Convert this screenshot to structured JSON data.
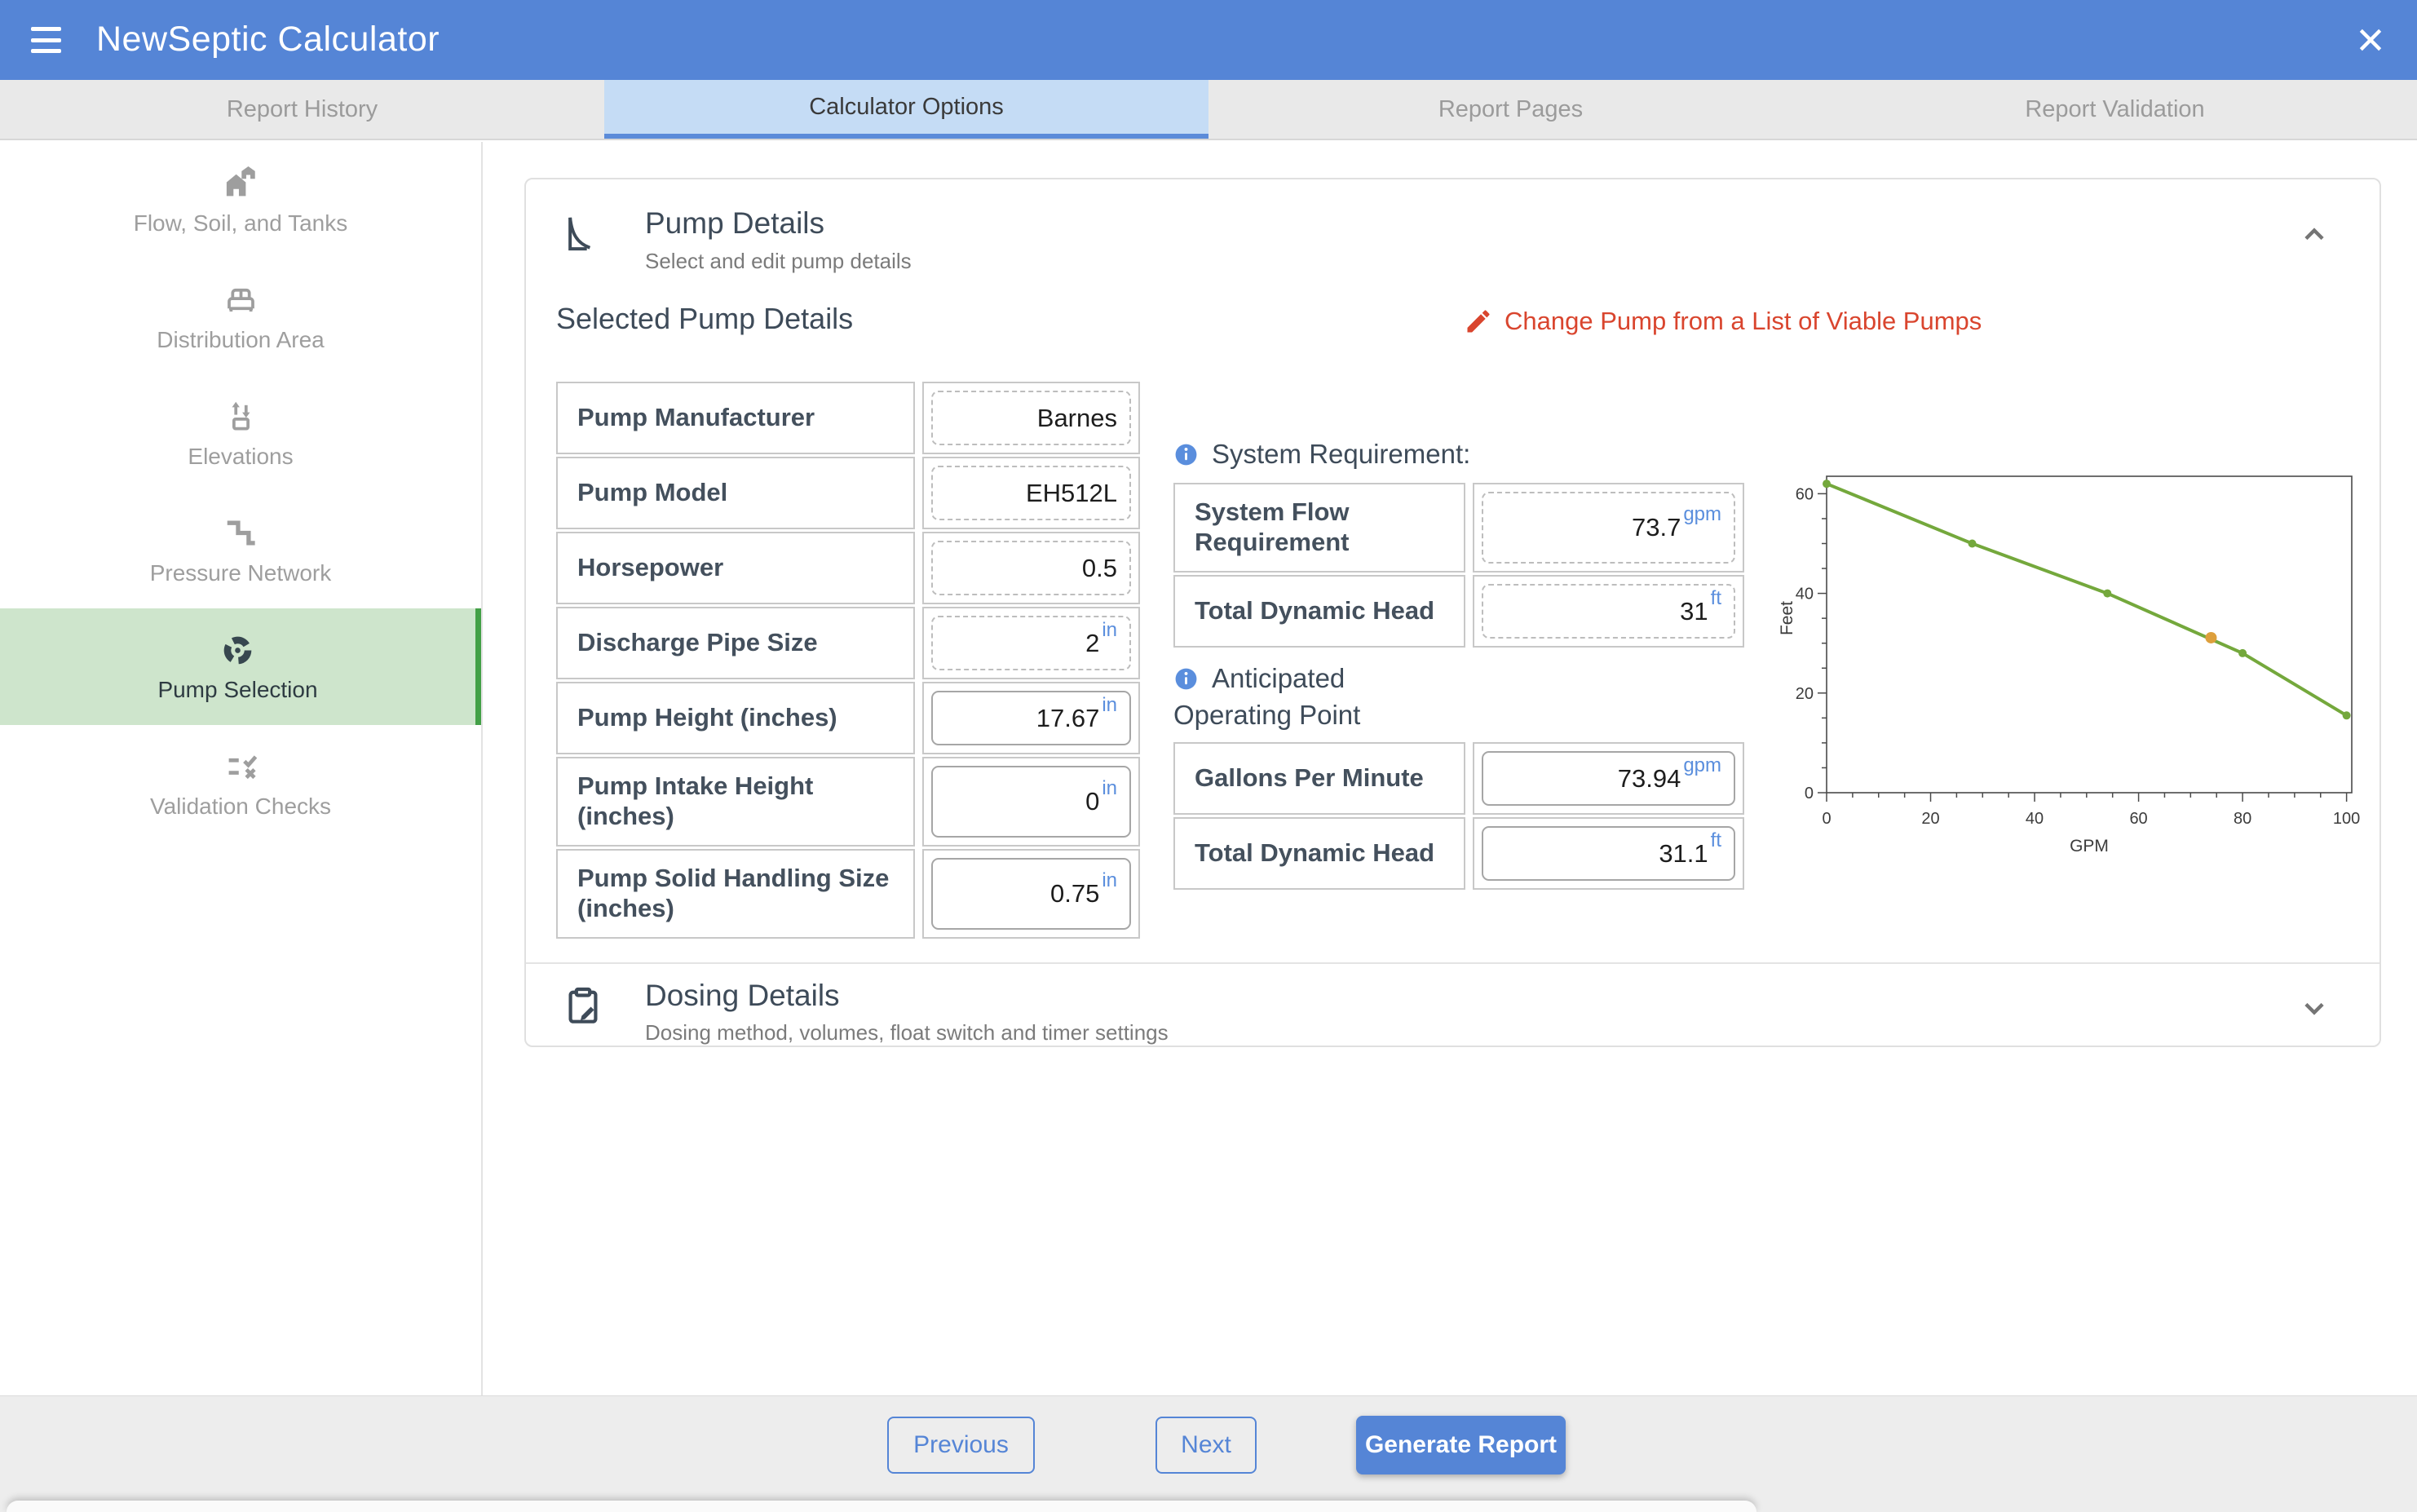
{
  "header": {
    "title": "NewSeptic Calculator"
  },
  "tabs": [
    {
      "label": "Report History",
      "active": false
    },
    {
      "label": "Calculator Options",
      "active": true
    },
    {
      "label": "Report Pages",
      "active": false
    },
    {
      "label": "Report Validation",
      "active": false
    }
  ],
  "sidebar": {
    "items": [
      {
        "label": "Flow, Soil, and Tanks",
        "icon": "houses-icon",
        "selected": false
      },
      {
        "label": "Distribution Area",
        "icon": "bed-icon",
        "selected": false
      },
      {
        "label": "Elevations",
        "icon": "elevation-arrows-icon",
        "selected": false
      },
      {
        "label": "Pressure Network",
        "icon": "pipe-icon",
        "selected": false
      },
      {
        "label": "Pump Selection",
        "icon": "pump-fan-icon",
        "selected": true
      },
      {
        "label": "Validation Checks",
        "icon": "rule-check-icon",
        "selected": false
      }
    ]
  },
  "pump_details": {
    "title": "Pump Details",
    "subtitle": "Select and edit pump details",
    "section_heading": "Selected Pump Details",
    "change_pump_link": "Change Pump from a List of Viable Pumps",
    "fields": [
      {
        "label": "Pump Manufacturer",
        "value": "Barnes",
        "unit": "",
        "editable": false
      },
      {
        "label": "Pump Model",
        "value": "EH512L",
        "unit": "",
        "editable": false
      },
      {
        "label": "Horsepower",
        "value": "0.5",
        "unit": "",
        "editable": false
      },
      {
        "label": "Discharge Pipe Size",
        "value": "2",
        "unit": "in",
        "editable": false
      },
      {
        "label": "Pump Height (inches)",
        "value": "17.67",
        "unit": "in",
        "editable": true
      },
      {
        "label": "Pump Intake Height (inches)",
        "value": "0",
        "unit": "in",
        "editable": true
      },
      {
        "label": "Pump Solid Handling Size (inches)",
        "value": "0.75",
        "unit": "in",
        "editable": true
      }
    ]
  },
  "system_requirement": {
    "heading": "System Requirement:",
    "rows": [
      {
        "label": "System Flow Requirement",
        "value": "73.7",
        "unit": "gpm",
        "editable": false
      },
      {
        "label": "Total Dynamic Head",
        "value": "31",
        "unit": "ft",
        "editable": false
      }
    ]
  },
  "operating_point": {
    "line1": "Anticipated",
    "line2": "Operating Point",
    "rows": [
      {
        "label": "Gallons Per Minute",
        "value": "73.94",
        "unit": "gpm",
        "editable": true
      },
      {
        "label": "Total Dynamic Head",
        "value": "31.1",
        "unit": "ft",
        "editable": true
      }
    ]
  },
  "dosing_details": {
    "title": "Dosing Details",
    "subtitle": "Dosing method, volumes, float switch and timer settings"
  },
  "footer": {
    "previous_label": "Previous",
    "next_label": "Next",
    "generate_label": "Generate Report"
  },
  "colors": {
    "header_blue": "#5585d6",
    "active_tab_blue": "#c5dcf5",
    "tab_underline": "#5b8bd9",
    "selected_green_bg": "#cee5cc",
    "selected_green_border": "#43a047",
    "link_red": "#d9452e",
    "unit_blue": "#5a8edd",
    "curve_green": "#74a83c",
    "operating_orange": "#dd9f3c"
  },
  "chart_data": {
    "type": "line",
    "title": "",
    "xlabel": "GPM",
    "ylabel": "Feet",
    "xlim": [
      0,
      101
    ],
    "ylim": [
      0,
      63.5
    ],
    "x_major_ticks": [
      0,
      20,
      40,
      60,
      80,
      100
    ],
    "x_minor_step": 5,
    "y_major_ticks": [
      0,
      20,
      40,
      60
    ],
    "y_minor_step": 5,
    "grid": false,
    "legend": false,
    "series": [
      {
        "name": "Pump Curve",
        "color": "#74a83c",
        "x": [
          0,
          28,
          54,
          80,
          100
        ],
        "y": [
          62,
          50,
          40,
          28,
          15.5
        ]
      }
    ],
    "operating_point": {
      "x": 73.94,
      "y": 31.1,
      "color": "#dd9f3c"
    }
  }
}
